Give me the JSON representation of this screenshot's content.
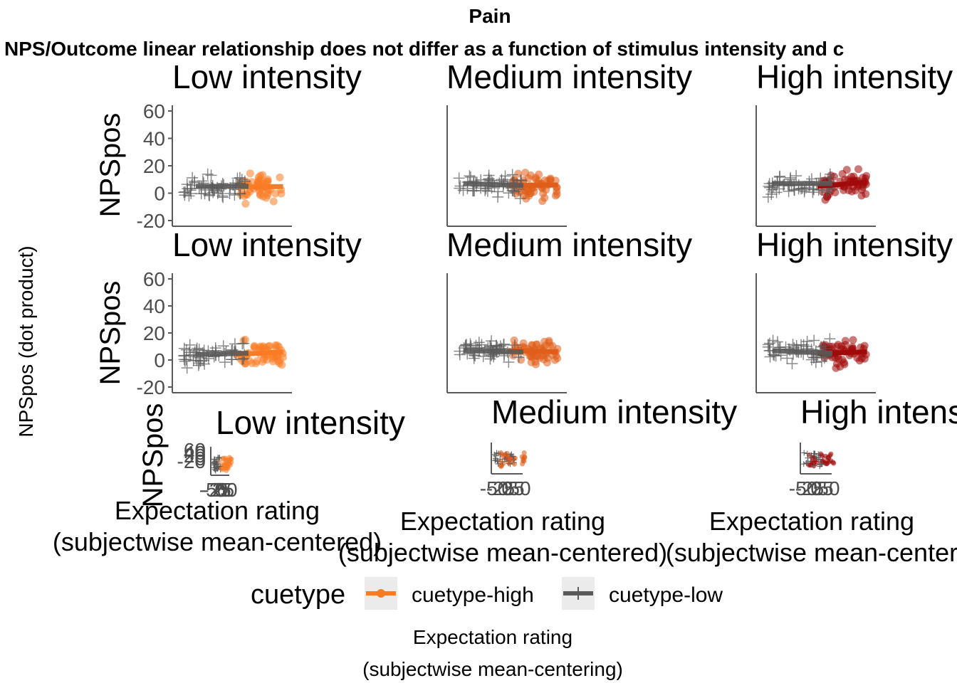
{
  "title": "Pain",
  "subtitle": "NPS/Outcome linear relationship does not differ as a function of stimulus intensity and c",
  "y_outer_label": "NPSpos (dot product)",
  "x_outer_label_line1": "Expectation rating",
  "x_outer_label_line2": "(subjectwise mean-centering)",
  "row_panel_ylabel": "NPSpos",
  "panel_titles": [
    "Low intensity",
    "Medium intensity",
    "High intensity"
  ],
  "panel_titles_row3": [
    "Low intensity",
    "Medium intensity",
    "High intens"
  ],
  "x_label_line1": "Expectation rating",
  "x_label_line2": [
    "(subjectwise mean-centered)",
    "(subjectwise mean-centered)",
    "(subjectwise mean-center"
  ],
  "y_ticks": [
    "60",
    "40",
    "20",
    "0",
    "-20"
  ],
  "row3_yticks": [
    "60",
    "40",
    "20",
    "0",
    "-20"
  ],
  "row3_xticks": [
    [
      "-50",
      "-25",
      "0",
      "25",
      "50"
    ],
    [
      "-50",
      "-25",
      "0",
      "25",
      "50"
    ],
    [
      "-50",
      "-25",
      "0",
      "25",
      "50"
    ]
  ],
  "legend": {
    "title": "cuetype",
    "items": [
      {
        "label": "cuetype-high",
        "color": "#f97c25"
      },
      {
        "label": "cuetype-low",
        "color": "#5a5a5a"
      }
    ]
  },
  "colors": {
    "low_high": "#f97c25",
    "medium_high": "#e05e1a",
    "high_high": "#a10a0a",
    "cue_low": "#5a5a5a",
    "axis": "#5a5a5a"
  },
  "chart_data": [
    {
      "type": "scatter",
      "row": 1,
      "panels": [
        {
          "title": "Low intensity",
          "ylim": [
            -20,
            60
          ],
          "series": [
            {
              "name": "cuetype-high",
              "fit": [
                [
                  -2,
                  4.5
                ],
                [
                  28,
                  4.8
                ]
              ]
            },
            {
              "name": "cuetype-low",
              "fit": [
                [
                  -30,
                  5
                ],
                [
                  5,
                  5
                ]
              ]
            }
          ]
        },
        {
          "title": "Medium intensity",
          "ylim": [
            -20,
            60
          ],
          "series": [
            {
              "name": "cuetype-high",
              "fit": [
                [
                  -5,
                  5.5
                ],
                [
                  28,
                  6
                ]
              ]
            },
            {
              "name": "cuetype-low",
              "fit": [
                [
                  -35,
                  7
                ],
                [
                  5,
                  5.5
                ]
              ]
            }
          ]
        },
        {
          "title": "High intensity",
          "ylim": [
            -20,
            60
          ],
          "series": [
            {
              "name": "cuetype-high",
              "fit": [
                [
                  -5,
                  5
                ],
                [
                  28,
                  8
                ]
              ]
            },
            {
              "name": "cuetype-low",
              "fit": [
                [
                  -35,
                  7
                ],
                [
                  5,
                  7
                ]
              ]
            }
          ]
        }
      ]
    },
    {
      "type": "scatter",
      "row": 2,
      "panels": [
        {
          "title": "Low intensity",
          "ylim": [
            -20,
            60
          ],
          "series": [
            {
              "name": "cuetype-high",
              "fit": [
                [
                  -5,
                  4
                ],
                [
                  28,
                  6
                ]
              ]
            },
            {
              "name": "cuetype-low",
              "fit": [
                [
                  -30,
                  4
                ],
                [
                  5,
                  5
                ]
              ]
            }
          ]
        },
        {
          "title": "Medium intensity",
          "ylim": [
            -20,
            60
          ],
          "series": [
            {
              "name": "cuetype-high",
              "fit": [
                [
                  -5,
                  7
                ],
                [
                  28,
                  6
                ]
              ]
            },
            {
              "name": "cuetype-low",
              "fit": [
                [
                  -35,
                  7
                ],
                [
                  5,
                  6
                ]
              ]
            }
          ]
        },
        {
          "title": "High intensity",
          "ylim": [
            -20,
            60
          ],
          "series": [
            {
              "name": "cuetype-high",
              "fit": [
                [
                  -5,
                  5
                ],
                [
                  28,
                  6
                ]
              ]
            },
            {
              "name": "cuetype-low",
              "fit": [
                [
                  -35,
                  7
                ],
                [
                  5,
                  5
                ]
              ]
            }
          ]
        }
      ]
    }
  ]
}
